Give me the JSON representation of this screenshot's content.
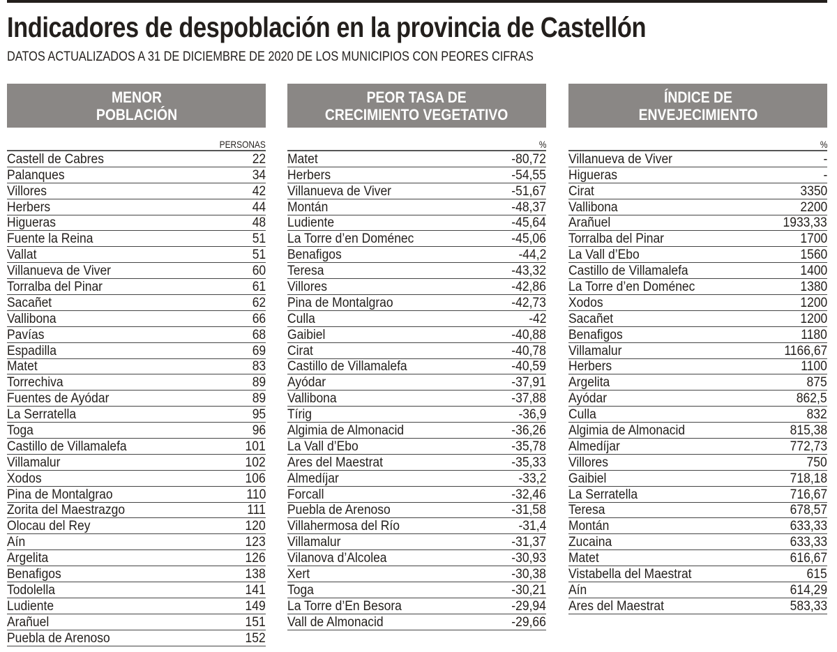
{
  "title": "Indicadores de despoblación en la provincia de Castellón",
  "subtitle": "DATOS ACTUALIZADOS A 31 DE DICIEMBRE DE 2020 DE LOS MUNICIPIOS CON PEORES CIFRAS",
  "colors": {
    "header_bg": "#8a8785",
    "text": "#231f1c"
  },
  "tables": [
    {
      "header": "MENOR\nPOBLACIÓN",
      "unit": "PERSONAS",
      "rows": [
        [
          "Castell de Cabres",
          "22"
        ],
        [
          "Palanques",
          "34"
        ],
        [
          "Villores",
          "42"
        ],
        [
          "Herbers",
          "44"
        ],
        [
          "Higueras",
          "48"
        ],
        [
          "Fuente la Reina",
          "51"
        ],
        [
          "Vallat",
          "51"
        ],
        [
          "Villanueva de Viver",
          "60"
        ],
        [
          "Torralba del Pinar",
          "61"
        ],
        [
          "Sacañet",
          "62"
        ],
        [
          "Vallibona",
          "66"
        ],
        [
          "Pavías",
          "68"
        ],
        [
          "Espadilla",
          "69"
        ],
        [
          "Matet",
          "83"
        ],
        [
          "Torrechiva",
          "89"
        ],
        [
          "Fuentes de Ayódar",
          "89"
        ],
        [
          "La Serratella",
          "95"
        ],
        [
          "Toga",
          "96"
        ],
        [
          "Castillo de Villamalefa",
          "101"
        ],
        [
          "Villamalur",
          "102"
        ],
        [
          "Xodos",
          "106"
        ],
        [
          "Pina de Montalgrao",
          "110"
        ],
        [
          "Zorita del Maestrazgo",
          "111"
        ],
        [
          "Olocau del Rey",
          "120"
        ],
        [
          "Aín",
          "123"
        ],
        [
          "Argelita",
          "126"
        ],
        [
          "Benafigos",
          "138"
        ],
        [
          "Todolella",
          "141"
        ],
        [
          "Ludiente",
          "149"
        ],
        [
          "Arañuel",
          "151"
        ],
        [
          "Puebla de Arenoso",
          "152"
        ]
      ]
    },
    {
      "header": "PEOR TASA DE\nCRECIMIENTO VEGETATIVO",
      "unit": "%",
      "rows": [
        [
          "Matet",
          "-80,72"
        ],
        [
          "Herbers",
          "-54,55"
        ],
        [
          "Villanueva de Viver",
          "-51,67"
        ],
        [
          "Montán",
          "-48,37"
        ],
        [
          "Ludiente",
          "-45,64"
        ],
        [
          "La Torre d’en Doménec",
          "-45,06"
        ],
        [
          "Benafigos",
          "-44,2"
        ],
        [
          "Teresa",
          "-43,32"
        ],
        [
          "Villores",
          "-42,86"
        ],
        [
          "Pina de Montalgrao",
          "-42,73"
        ],
        [
          "Culla",
          "-42"
        ],
        [
          "Gaibiel",
          "-40,88"
        ],
        [
          "Cirat",
          "-40,78"
        ],
        [
          "Castillo de Villamalefa",
          "-40,59"
        ],
        [
          "Ayódar",
          "-37,91"
        ],
        [
          "Vallibona",
          "-37,88"
        ],
        [
          "Tírig",
          "-36,9"
        ],
        [
          "Algimia de Almonacid",
          "-36,26"
        ],
        [
          "La Vall d’Ebo",
          "-35,78"
        ],
        [
          "Ares del Maestrat",
          "-35,33"
        ],
        [
          "Almedíjar",
          "-33,2"
        ],
        [
          "Forcall",
          "-32,46"
        ],
        [
          "Puebla de Arenoso",
          "-31,58"
        ],
        [
          "Villahermosa del Río",
          "-31,4"
        ],
        [
          "Villamalur",
          "-31,37"
        ],
        [
          "Vilanova d’Alcolea",
          "-30,93"
        ],
        [
          "Xert",
          "-30,38"
        ],
        [
          "Toga",
          "-30,21"
        ],
        [
          "La  Torre d’En Besora",
          "-29,94"
        ],
        [
          "Vall de Almonacid",
          "-29,66"
        ]
      ]
    },
    {
      "header": "ÍNDICE DE\nENVEJECIMIENTO",
      "unit": "%",
      "rows": [
        [
          "Villanueva de Viver",
          "-"
        ],
        [
          "Higueras",
          "-"
        ],
        [
          "Cirat",
          "3350"
        ],
        [
          "Vallibona",
          "2200"
        ],
        [
          "Arañuel",
          "1933,33"
        ],
        [
          "Torralba del Pinar",
          "1700"
        ],
        [
          "La Vall d’Ebo",
          "1560"
        ],
        [
          "Castillo de Villamalefa",
          "1400"
        ],
        [
          "La Torre d’en Doménec",
          "1380"
        ],
        [
          "Xodos",
          "1200"
        ],
        [
          "Sacañet",
          "1200"
        ],
        [
          "Benafigos",
          "1180"
        ],
        [
          "Villamalur",
          "1166,67"
        ],
        [
          "Herbers",
          "1100"
        ],
        [
          "Argelita",
          "875"
        ],
        [
          "Ayódar",
          "862,5"
        ],
        [
          "Culla",
          "832"
        ],
        [
          "Algimia de Almonacid",
          "815,38"
        ],
        [
          "Almedíjar",
          "772,73"
        ],
        [
          "Villores",
          "750"
        ],
        [
          "Gaibiel",
          "718,18"
        ],
        [
          "La Serratella",
          "716,67"
        ],
        [
          "Teresa",
          "678,57"
        ],
        [
          "Montán",
          "633,33"
        ],
        [
          "Zucaina",
          "633,33"
        ],
        [
          "Matet",
          "616,67"
        ],
        [
          "Vistabella del Maestrat",
          "615"
        ],
        [
          "Aín",
          "614,29"
        ],
        [
          "Ares del Maestrat",
          "583,33"
        ]
      ]
    }
  ]
}
